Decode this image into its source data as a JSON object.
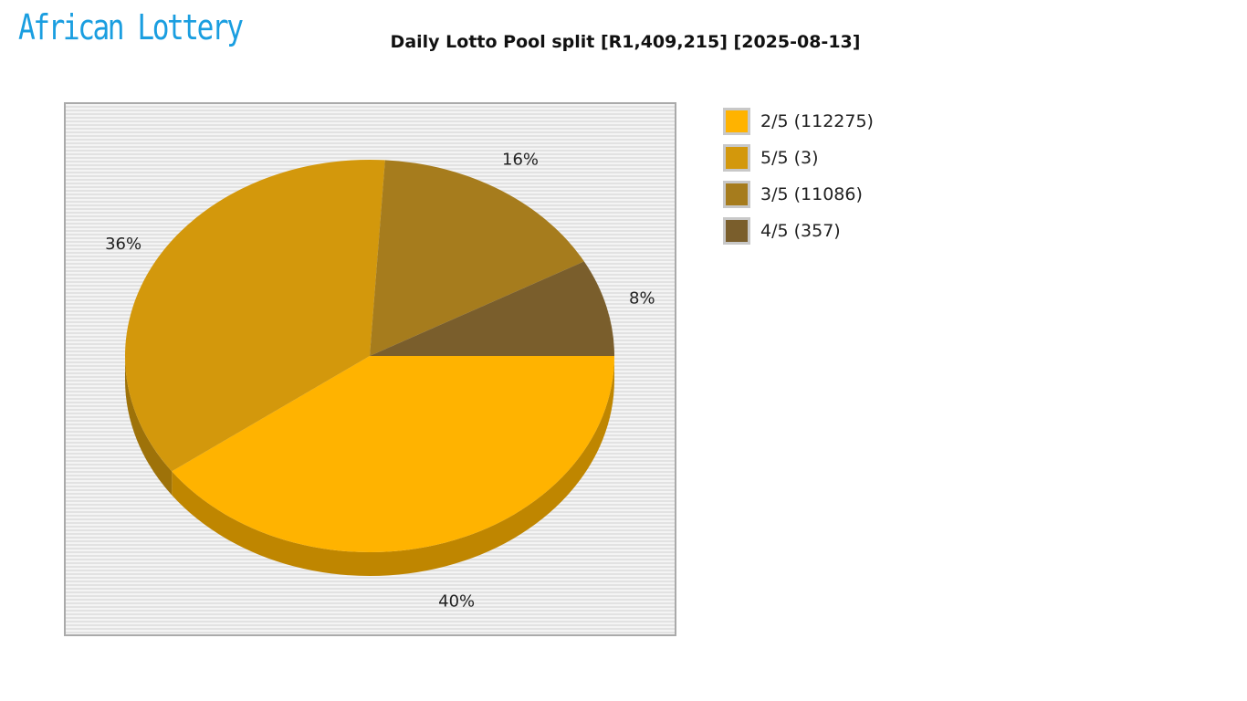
{
  "logo": {
    "text": "African Lottery"
  },
  "chart_data": {
    "type": "pie",
    "title": "Daily Lotto Pool split [R1,409,215] [2025-08-13]",
    "slices": [
      {
        "label": "2/5 (112275)",
        "percent": 40,
        "percent_label": "40%",
        "color": "#FFB300"
      },
      {
        "label": "5/5 (3)",
        "percent": 36,
        "percent_label": "36%",
        "color": "#D3980C"
      },
      {
        "label": "3/5 (11086)",
        "percent": 16,
        "percent_label": "16%",
        "color": "#A67C1D"
      },
      {
        "label": "4/5 (357)",
        "percent": 8,
        "percent_label": "8%",
        "color": "#7A5E2C"
      }
    ],
    "legend_position": "right",
    "style": "3d"
  }
}
